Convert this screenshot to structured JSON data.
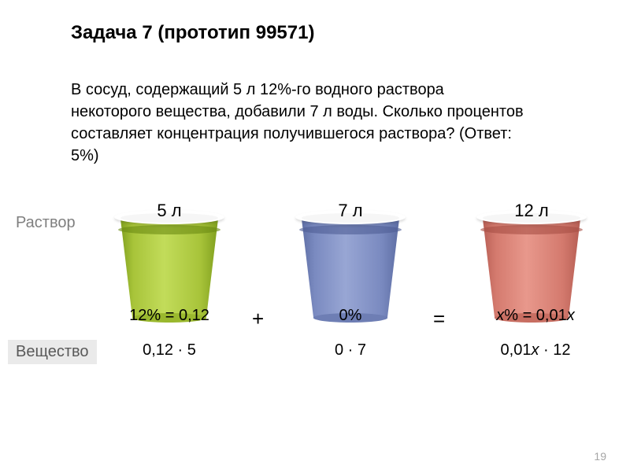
{
  "title": "Задача 7 (прототип 99571)",
  "problem": "В сосуд, содержащий 5 л 12%-го водного раствора некоторого вещества, добавили 7 л воды. Сколько процентов составляет концентрация получившегося раствора? (Ответ: 5%)",
  "labels": {
    "solution": "Раствор",
    "substance": "Вещество"
  },
  "operators": {
    "plus": "+",
    "eq": "="
  },
  "cups": [
    {
      "color_class": "cup-green",
      "volume": "5 л",
      "percent": "12% = 0,12",
      "product": "0,12 · 5",
      "colors": {
        "body_from": "#7a9a1a",
        "body_mid": "#c2dc5a",
        "body_to": "#7a9a1a",
        "curl": "#6b8a12",
        "bottom": "#9ab82e"
      }
    },
    {
      "color_class": "cup-blue",
      "volume": "7 л",
      "percent": "0%",
      "product": "0 · 7",
      "colors": {
        "body_from": "#5a6aa0",
        "body_mid": "#98a6d4",
        "body_to": "#5a6aa0",
        "curl": "#4e5e94",
        "bottom": "#6e7eb4"
      }
    },
    {
      "color_class": "cup-red",
      "volume": "12 л",
      "percent_html": "<span class='italic'>x</span>% = 0,01<span class='italic'>x</span>",
      "product_html": "0,01<span class='italic'>x</span> · 12",
      "colors": {
        "body_from": "#b25a50",
        "body_mid": "#e8988c",
        "body_to": "#b25a50",
        "curl": "#a64e44",
        "bottom": "#c86e62"
      }
    }
  ],
  "page_number": "19",
  "typography": {
    "title_fontsize": 24,
    "title_weight": "bold",
    "body_fontsize": 20,
    "label_color": "#7f7f7f",
    "pageno_color": "#a6a6a6",
    "background": "#ffffff"
  }
}
